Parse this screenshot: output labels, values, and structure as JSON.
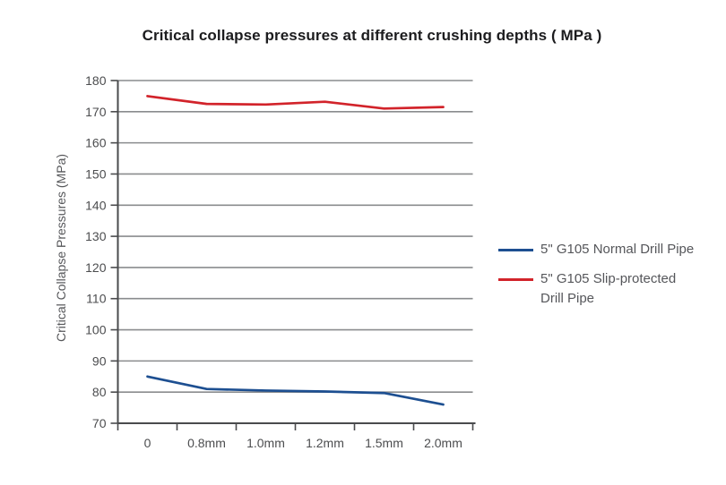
{
  "chart_data": {
    "type": "line",
    "title": "Critical collapse pressures at different crushing depths ( MPa )",
    "xlabel": "",
    "ylabel": "Critical Collapse Pressures (MPa)",
    "categories": [
      "0",
      "0.8mm",
      "1.0mm",
      "1.2mm",
      "1.5mm",
      "2.0mm"
    ],
    "ylim": [
      70,
      180
    ],
    "ytick_step": 10,
    "grid": true,
    "legend_position": "right",
    "series": [
      {
        "name": "5\" G105 Normal Drill Pipe",
        "color": "#1d4f91",
        "values": [
          85,
          81,
          80.5,
          80.2,
          79.7,
          76
        ]
      },
      {
        "name": "5\" G105 Slip-protected Drill Pipe",
        "color": "#d2232a",
        "values": [
          175,
          172.5,
          172.3,
          173.2,
          171,
          171.5
        ]
      }
    ],
    "colors": {
      "gridline": "#8a8c8e",
      "axis": "#4a4b4d",
      "tick_label": "#4c4d4f",
      "title_text": "#1c1c1e",
      "legend_text": "#55565a"
    }
  }
}
